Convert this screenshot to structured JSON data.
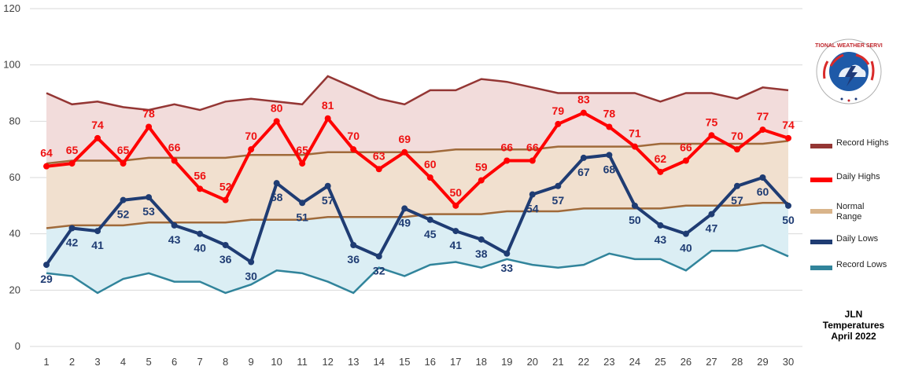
{
  "chart_data": {
    "type": "line",
    "days": [
      1,
      2,
      3,
      4,
      5,
      6,
      7,
      8,
      9,
      10,
      11,
      12,
      13,
      14,
      15,
      16,
      17,
      18,
      19,
      20,
      21,
      22,
      23,
      24,
      25,
      26,
      27,
      28,
      29,
      30
    ],
    "ylim": [
      0,
      120
    ],
    "yticks": [
      0,
      20,
      40,
      60,
      80,
      100,
      120
    ],
    "grid": true,
    "series": [
      {
        "name": "Record Highs",
        "color": "#943634",
        "values": [
          90,
          86,
          87,
          85,
          84,
          86,
          84,
          87,
          88,
          87,
          86,
          96,
          92,
          88,
          86,
          91,
          91,
          95,
          94,
          92,
          90,
          90,
          90,
          90,
          87,
          90,
          90,
          88,
          92,
          91
        ]
      },
      {
        "name": "Daily Highs",
        "color": "#ff0000",
        "values": [
          64,
          65,
          74,
          65,
          78,
          66,
          56,
          52,
          70,
          80,
          65,
          81,
          70,
          63,
          69,
          60,
          50,
          59,
          66,
          66,
          79,
          83,
          78,
          71,
          62,
          66,
          75,
          70,
          77,
          74
        ]
      },
      {
        "name": "Normal Range",
        "color": "#d9b48a",
        "upper": [
          65,
          66,
          66,
          66,
          67,
          67,
          67,
          67,
          68,
          68,
          68,
          69,
          69,
          69,
          69,
          69,
          70,
          70,
          70,
          70,
          71,
          71,
          71,
          71,
          72,
          72,
          72,
          72,
          72,
          73
        ],
        "lower": [
          42,
          43,
          43,
          43,
          44,
          44,
          44,
          44,
          45,
          45,
          45,
          46,
          46,
          46,
          46,
          47,
          47,
          47,
          48,
          48,
          48,
          49,
          49,
          49,
          49,
          50,
          50,
          50,
          51,
          51
        ]
      },
      {
        "name": "Daily Lows",
        "color": "#1f3c73",
        "values": [
          29,
          42,
          41,
          52,
          53,
          43,
          40,
          36,
          30,
          58,
          51,
          57,
          36,
          32,
          49,
          45,
          41,
          38,
          33,
          54,
          57,
          67,
          68,
          50,
          43,
          40,
          47,
          57,
          60,
          50
        ]
      },
      {
        "name": "Record Lows",
        "color": "#31849b",
        "values": [
          26,
          25,
          19,
          24,
          26,
          23,
          23,
          19,
          22,
          27,
          26,
          23,
          19,
          28,
          25,
          29,
          30,
          28,
          31,
          29,
          28,
          29,
          33,
          31,
          31,
          27,
          34,
          34,
          36,
          32
        ]
      }
    ]
  },
  "legend": {
    "record_highs": "Record Highs",
    "daily_highs": "Daily Highs",
    "normal_range": "Normal Range",
    "daily_lows": "Daily Lows",
    "record_lows": "Record Lows"
  },
  "caption": {
    "line1": "JLN",
    "line2": "Temperatures",
    "line3": "April 2022"
  },
  "logo": {
    "text": "NATIONAL WEATHER SERVICE"
  }
}
